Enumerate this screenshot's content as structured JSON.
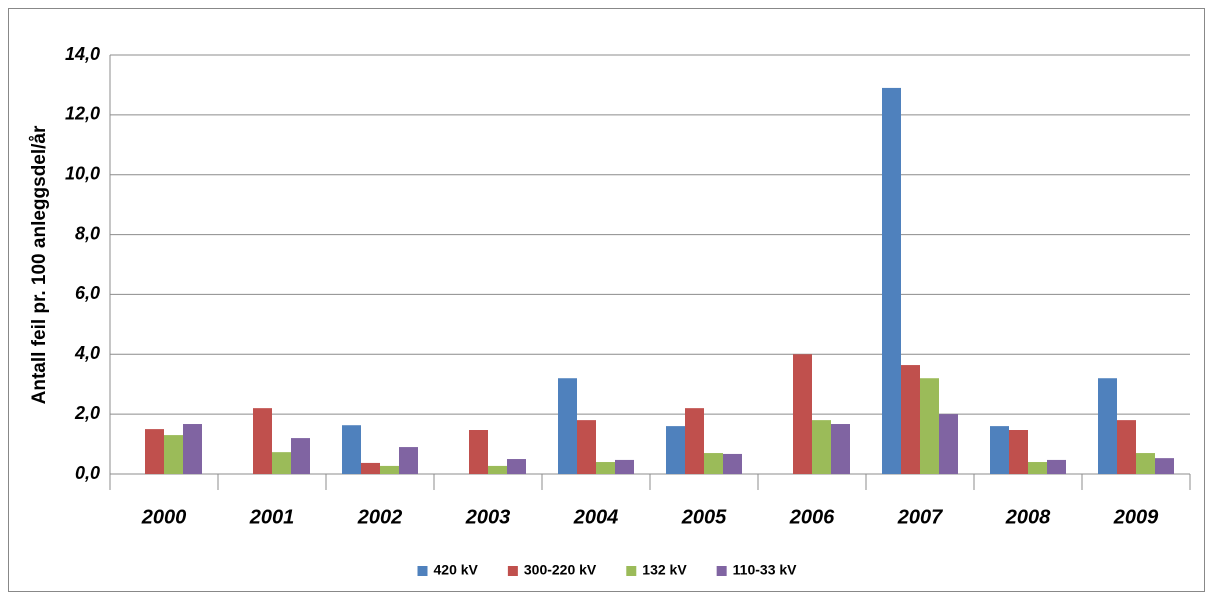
{
  "chart_data": {
    "type": "bar",
    "y_axis_label": "Antall feil pr. 100 anleggsdel/år",
    "categories": [
      "2000",
      "2001",
      "2002",
      "2003",
      "2004",
      "2005",
      "2006",
      "2007",
      "2008",
      "2009"
    ],
    "series": [
      {
        "name": "420 kV",
        "color": "#4f81bd",
        "values": [
          0,
          0,
          1.63,
          0,
          3.2,
          1.6,
          0,
          12.9,
          1.6,
          3.2
        ]
      },
      {
        "name": "300-220 kV",
        "color": "#c0504d",
        "values": [
          1.5,
          2.2,
          0.37,
          1.47,
          1.8,
          2.2,
          4.0,
          3.64,
          1.47,
          1.8
        ]
      },
      {
        "name": "132 kV",
        "color": "#9bbb59",
        "values": [
          1.3,
          0.73,
          0.27,
          0.27,
          0.4,
          0.7,
          1.8,
          3.2,
          0.4,
          0.7
        ]
      },
      {
        "name": "110-33 kV",
        "color": "#8064a2",
        "values": [
          1.67,
          1.2,
          0.9,
          0.5,
          0.47,
          0.67,
          1.67,
          2.0,
          0.47,
          0.53
        ]
      }
    ],
    "ylim": [
      0,
      14
    ],
    "yticks": [
      {
        "value": 0,
        "label": "0,0"
      },
      {
        "value": 2,
        "label": "2,0"
      },
      {
        "value": 4,
        "label": "4,0"
      },
      {
        "value": 6,
        "label": "6,0"
      },
      {
        "value": 8,
        "label": "8,0"
      },
      {
        "value": 10,
        "label": "10,0"
      },
      {
        "value": 12,
        "label": "12,0"
      },
      {
        "value": 14,
        "label": "14,0"
      }
    ],
    "grid": true,
    "legend": "bottom"
  }
}
